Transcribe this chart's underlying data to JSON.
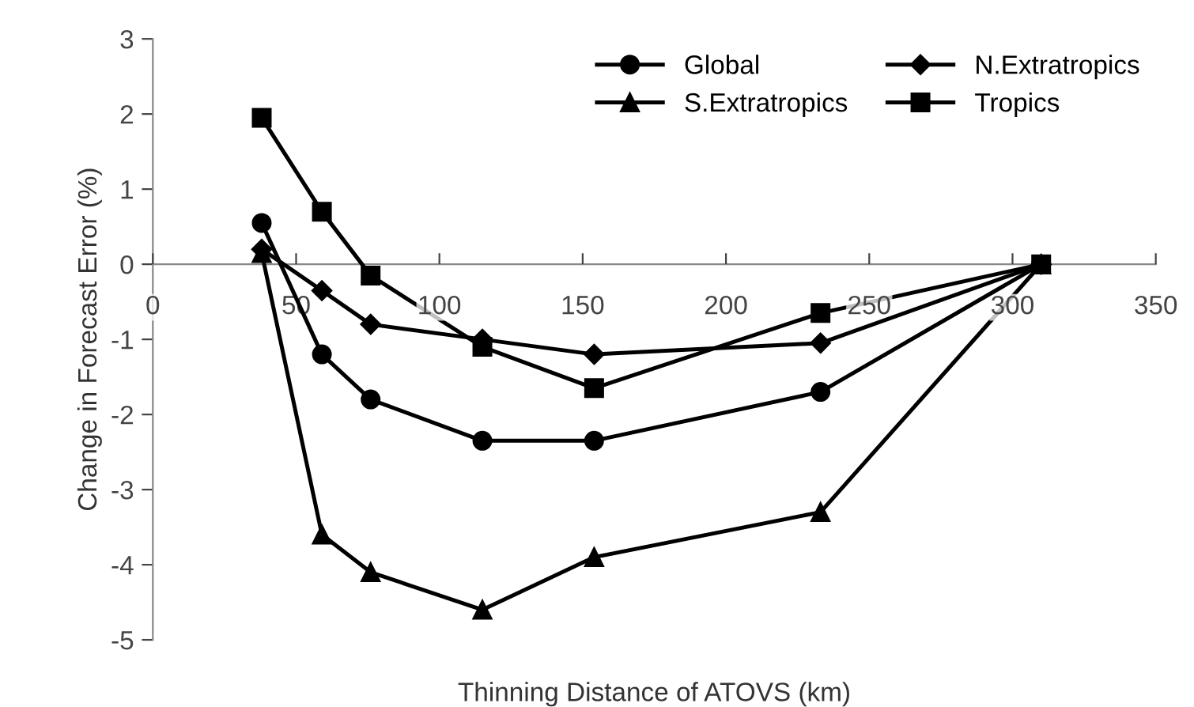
{
  "chart_data": {
    "type": "line",
    "xlabel": "Thinning Distance of ATOVS (km)",
    "ylabel": "Change in Forecast Error (%)",
    "x": [
      38,
      59,
      76,
      115,
      154,
      233,
      310
    ],
    "series": [
      {
        "name": "Global",
        "color": "#000000",
        "marker": "circle",
        "values": [
          0.55,
          -1.2,
          -1.8,
          -2.35,
          -2.35,
          -1.7,
          0
        ]
      },
      {
        "name": "N.Extratropics",
        "color": "#000000",
        "marker": "diamond",
        "values": [
          0.2,
          -0.35,
          -0.8,
          -1.0,
          -1.2,
          -1.05,
          0
        ]
      },
      {
        "name": "S.Extratropics",
        "color": "#000000",
        "marker": "triangle",
        "values": [
          0.15,
          -3.6,
          -4.1,
          -4.6,
          -3.9,
          -3.3,
          0
        ]
      },
      {
        "name": "Tropics",
        "color": "#000000",
        "marker": "square",
        "values": [
          1.95,
          0.7,
          -0.15,
          -1.1,
          -1.65,
          -0.65,
          0
        ]
      }
    ],
    "xlim": [
      0,
      350
    ],
    "xticks": [
      0,
      50,
      100,
      150,
      200,
      250,
      300,
      350
    ],
    "ylim": [
      -5,
      3
    ],
    "yticks": [
      -5,
      -4,
      -3,
      -2,
      -1,
      0,
      1,
      2,
      3
    ],
    "grid": false,
    "legend": "top right",
    "line_style": "solid"
  }
}
